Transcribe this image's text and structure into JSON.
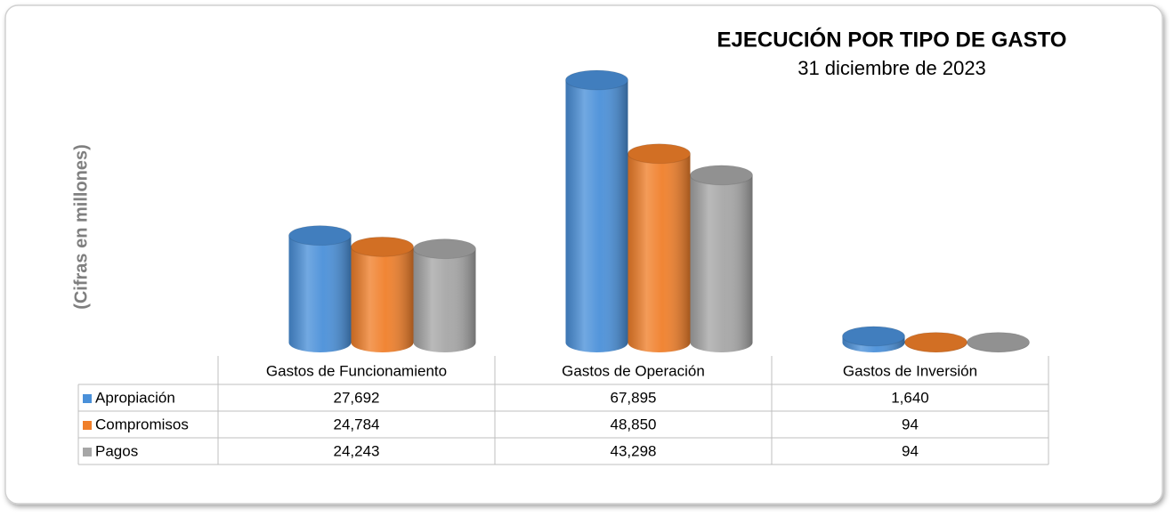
{
  "chart_data": {
    "type": "bar",
    "title": "EJECUCIÓN POR TIPO  DE GASTO",
    "subtitle": "31 diciembre de 2023",
    "y_label": "(Cifras en millones)",
    "categories": [
      "Gastos de Funcionamiento",
      "Gastos de Operación",
      "Gastos de Inversión"
    ],
    "series": [
      {
        "name": "Apropiación",
        "color": "#4a90d9",
        "values": [
          27692,
          67895,
          1640
        ],
        "value_labels": [
          "27,692",
          "67,895",
          "1,640"
        ]
      },
      {
        "name": "Compromisos",
        "color": "#f07f2a",
        "values": [
          24784,
          48850,
          94
        ],
        "value_labels": [
          "24,784",
          "48,850",
          "94"
        ]
      },
      {
        "name": "Pagos",
        "color": "#a6a6a6",
        "values": [
          24243,
          43298,
          94
        ],
        "value_labels": [
          "24,243",
          "43,298",
          "94"
        ]
      }
    ]
  }
}
